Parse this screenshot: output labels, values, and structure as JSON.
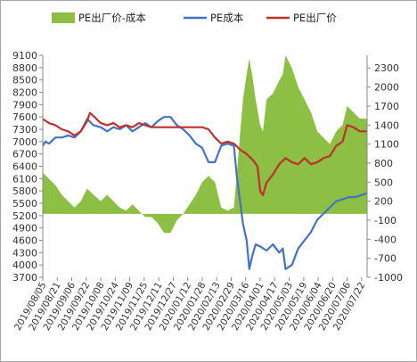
{
  "chart_data": {
    "type": "line",
    "legend": {
      "position": "top",
      "entries": [
        {
          "key": "spread",
          "label": "PE出厂价-成本",
          "kind": "area",
          "color": "#8cbf44"
        },
        {
          "key": "cost",
          "label": "PE成本",
          "kind": "line",
          "color": "#4472c4"
        },
        {
          "key": "price",
          "label": "PE出厂价",
          "kind": "line",
          "color": "#c0302c"
        }
      ]
    },
    "left_axis": {
      "range": [
        3700,
        9100
      ],
      "ticks": [
        "9100",
        "8800",
        "8500",
        "8200",
        "7900",
        "7600",
        "7300",
        "7000",
        "6700",
        "6400",
        "6100",
        "5800",
        "5500",
        "5200",
        "4900",
        "4600",
        "4300",
        "4000",
        "3700"
      ]
    },
    "right_axis": {
      "range": [
        -1000,
        2500
      ],
      "ticks": [
        "2300",
        "2000",
        "1700",
        "1400",
        "1100",
        "800",
        "500",
        "200",
        "-100",
        "-400",
        "-700",
        "-1000"
      ]
    },
    "x_axis": {
      "start": "2019/08/05",
      "end": "2020/07/28",
      "tick_labels": [
        "2019/08/05",
        "2019/08/21",
        "2019/09/06",
        "2019/09/22",
        "2019/10/08",
        "2019/10/24",
        "2019/11/09",
        "2019/11/25",
        "2019/12/11",
        "2019/12/27",
        "2020/01/12",
        "2020/01/28",
        "2020/02/13",
        "2020/02/29",
        "2020/03/16",
        "2020/04/01",
        "2020/04/17",
        "2020/05/03",
        "2020/05/19",
        "2020/06/04",
        "2020/06/20",
        "2020/07/06",
        "2020/07/22"
      ]
    },
    "series": [
      {
        "name": "PE出厂价",
        "key": "price",
        "axis": "left",
        "points": [
          [
            "2019/08/05",
            7550
          ],
          [
            "2019/08/12",
            7450
          ],
          [
            "2019/08/19",
            7400
          ],
          [
            "2019/08/26",
            7300
          ],
          [
            "2019/09/02",
            7250
          ],
          [
            "2019/09/09",
            7150
          ],
          [
            "2019/09/16",
            7250
          ],
          [
            "2019/09/23",
            7500
          ],
          [
            "2019/09/26",
            7700
          ],
          [
            "2019/10/01",
            7600
          ],
          [
            "2019/10/08",
            7450
          ],
          [
            "2019/10/15",
            7400
          ],
          [
            "2019/10/22",
            7450
          ],
          [
            "2019/10/29",
            7350
          ],
          [
            "2019/11/05",
            7400
          ],
          [
            "2019/11/12",
            7350
          ],
          [
            "2019/11/19",
            7450
          ],
          [
            "2019/11/26",
            7400
          ],
          [
            "2019/12/03",
            7350
          ],
          [
            "2019/12/10",
            7350
          ],
          [
            "2019/12/17",
            7350
          ],
          [
            "2019/12/24",
            7350
          ],
          [
            "2019/12/31",
            7350
          ],
          [
            "2020/01/07",
            7350
          ],
          [
            "2020/01/14",
            7350
          ],
          [
            "2020/01/21",
            7350
          ],
          [
            "2020/01/28",
            7350
          ],
          [
            "2020/02/04",
            7300
          ],
          [
            "2020/02/11",
            7100
          ],
          [
            "2020/02/18",
            6950
          ],
          [
            "2020/02/25",
            7000
          ],
          [
            "2020/03/03",
            6950
          ],
          [
            "2020/03/10",
            6800
          ],
          [
            "2020/03/17",
            6700
          ],
          [
            "2020/03/24",
            6550
          ],
          [
            "2020/03/29",
            6400
          ],
          [
            "2020/04/01",
            5800
          ],
          [
            "2020/04/04",
            5700
          ],
          [
            "2020/04/08",
            6000
          ],
          [
            "2020/04/15",
            6200
          ],
          [
            "2020/04/22",
            6450
          ],
          [
            "2020/04/29",
            6600
          ],
          [
            "2020/05/06",
            6500
          ],
          [
            "2020/05/13",
            6450
          ],
          [
            "2020/05/20",
            6600
          ],
          [
            "2020/05/27",
            6450
          ],
          [
            "2020/06/03",
            6500
          ],
          [
            "2020/06/10",
            6600
          ],
          [
            "2020/06/17",
            6650
          ],
          [
            "2020/06/24",
            6900
          ],
          [
            "2020/07/01",
            7000
          ],
          [
            "2020/07/06",
            7400
          ],
          [
            "2020/07/13",
            7350
          ],
          [
            "2020/07/20",
            7250
          ],
          [
            "2020/07/28",
            7250
          ]
        ]
      },
      {
        "name": "PE成本",
        "key": "cost",
        "axis": "left",
        "points": [
          [
            "2019/08/05",
            6900
          ],
          [
            "2019/08/08",
            7000
          ],
          [
            "2019/08/12",
            6950
          ],
          [
            "2019/08/19",
            7100
          ],
          [
            "2019/08/26",
            7100
          ],
          [
            "2019/09/02",
            7150
          ],
          [
            "2019/09/09",
            7100
          ],
          [
            "2019/09/16",
            7250
          ],
          [
            "2019/09/23",
            7550
          ],
          [
            "2019/09/30",
            7400
          ],
          [
            "2019/10/08",
            7350
          ],
          [
            "2019/10/15",
            7250
          ],
          [
            "2019/10/22",
            7350
          ],
          [
            "2019/10/29",
            7300
          ],
          [
            "2019/11/05",
            7400
          ],
          [
            "2019/11/12",
            7250
          ],
          [
            "2019/11/19",
            7350
          ],
          [
            "2019/11/26",
            7450
          ],
          [
            "2019/12/03",
            7350
          ],
          [
            "2019/12/10",
            7500
          ],
          [
            "2019/12/17",
            7600
          ],
          [
            "2019/12/24",
            7600
          ],
          [
            "2019/12/31",
            7400
          ],
          [
            "2020/01/07",
            7300
          ],
          [
            "2020/01/14",
            7150
          ],
          [
            "2020/01/21",
            6950
          ],
          [
            "2020/01/28",
            6850
          ],
          [
            "2020/02/04",
            6500
          ],
          [
            "2020/02/11",
            6500
          ],
          [
            "2020/02/18",
            6900
          ],
          [
            "2020/02/25",
            6950
          ],
          [
            "2020/03/03",
            6900
          ],
          [
            "2020/03/06",
            6200
          ],
          [
            "2020/03/10",
            5500
          ],
          [
            "2020/03/13",
            5000
          ],
          [
            "2020/03/17",
            4600
          ],
          [
            "2020/03/20",
            3900
          ],
          [
            "2020/03/23",
            4200
          ],
          [
            "2020/03/27",
            4500
          ],
          [
            "2020/04/01",
            4450
          ],
          [
            "2020/04/08",
            4350
          ],
          [
            "2020/04/15",
            4500
          ],
          [
            "2020/04/22",
            4300
          ],
          [
            "2020/04/26",
            4400
          ],
          [
            "2020/04/29",
            3900
          ],
          [
            "2020/05/06",
            4000
          ],
          [
            "2020/05/13",
            4400
          ],
          [
            "2020/05/20",
            4600
          ],
          [
            "2020/05/27",
            4800
          ],
          [
            "2020/06/03",
            5100
          ],
          [
            "2020/06/10",
            5250
          ],
          [
            "2020/06/17",
            5400
          ],
          [
            "2020/06/24",
            5550
          ],
          [
            "2020/07/01",
            5600
          ],
          [
            "2020/07/08",
            5650
          ],
          [
            "2020/07/15",
            5650
          ],
          [
            "2020/07/22",
            5700
          ],
          [
            "2020/07/28",
            5750
          ]
        ]
      },
      {
        "name": "PE出厂价-成本",
        "key": "spread",
        "axis": "right",
        "points": [
          [
            "2019/08/05",
            650
          ],
          [
            "2019/08/12",
            550
          ],
          [
            "2019/08/19",
            450
          ],
          [
            "2019/08/26",
            300
          ],
          [
            "2019/09/02",
            200
          ],
          [
            "2019/09/09",
            100
          ],
          [
            "2019/09/16",
            200
          ],
          [
            "2019/09/23",
            400
          ],
          [
            "2019/09/30",
            300
          ],
          [
            "2019/10/08",
            200
          ],
          [
            "2019/10/15",
            300
          ],
          [
            "2019/10/22",
            200
          ],
          [
            "2019/10/29",
            100
          ],
          [
            "2019/11/05",
            50
          ],
          [
            "2019/11/12",
            150
          ],
          [
            "2019/11/19",
            50
          ],
          [
            "2019/11/26",
            -50
          ],
          [
            "2019/12/03",
            -50
          ],
          [
            "2019/12/10",
            -150
          ],
          [
            "2019/12/17",
            -300
          ],
          [
            "2019/12/24",
            -300
          ],
          [
            "2019/12/31",
            -100
          ],
          [
            "2020/01/07",
            0
          ],
          [
            "2020/01/14",
            150
          ],
          [
            "2020/01/21",
            300
          ],
          [
            "2020/01/28",
            500
          ],
          [
            "2020/02/04",
            600
          ],
          [
            "2020/02/11",
            500
          ],
          [
            "2020/02/18",
            100
          ],
          [
            "2020/02/25",
            50
          ],
          [
            "2020/03/03",
            100
          ],
          [
            "2020/03/06",
            600
          ],
          [
            "2020/03/10",
            1300
          ],
          [
            "2020/03/13",
            1800
          ],
          [
            "2020/03/17",
            2200
          ],
          [
            "2020/03/20",
            2450
          ],
          [
            "2020/03/23",
            2200
          ],
          [
            "2020/03/27",
            1800
          ],
          [
            "2020/04/01",
            1400
          ],
          [
            "2020/04/04",
            1300
          ],
          [
            "2020/04/08",
            1800
          ],
          [
            "2020/04/15",
            1900
          ],
          [
            "2020/04/22",
            2100
          ],
          [
            "2020/04/26",
            2200
          ],
          [
            "2020/04/29",
            2500
          ],
          [
            "2020/05/06",
            2300
          ],
          [
            "2020/05/13",
            2000
          ],
          [
            "2020/05/20",
            1800
          ],
          [
            "2020/05/27",
            1600
          ],
          [
            "2020/06/03",
            1300
          ],
          [
            "2020/06/10",
            1200
          ],
          [
            "2020/06/17",
            1100
          ],
          [
            "2020/06/24",
            1300
          ],
          [
            "2020/07/01",
            1400
          ],
          [
            "2020/07/06",
            1700
          ],
          [
            "2020/07/13",
            1600
          ],
          [
            "2020/07/20",
            1500
          ],
          [
            "2020/07/28",
            1500
          ]
        ]
      }
    ],
    "grid": false
  }
}
